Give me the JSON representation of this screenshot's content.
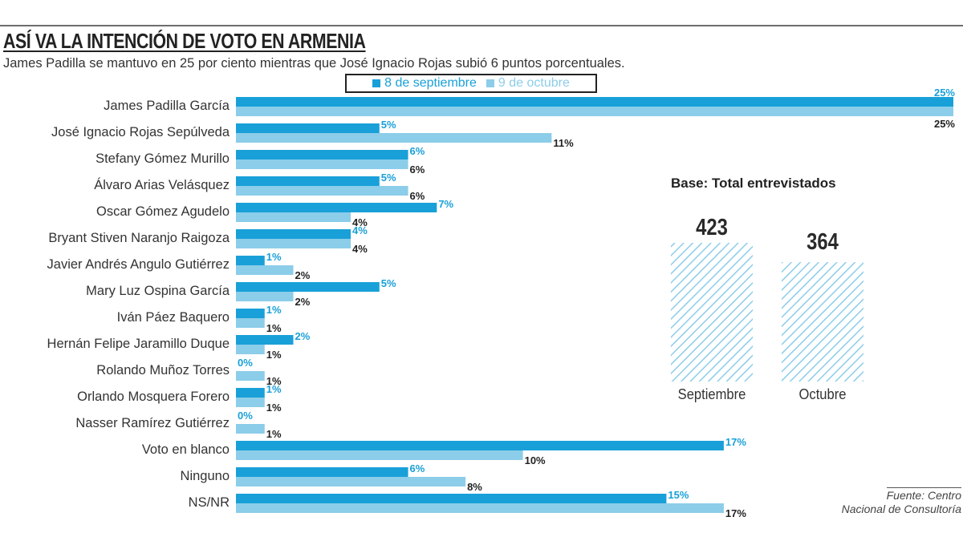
{
  "title": "ASÍ VA LA INTENCIÓN DE VOTO EN ARMENIA",
  "subtitle": "James Padilla se mantuvo en 25 por ciento mientras que José Ignacio Rojas subió 6 puntos porcentuales.",
  "legend": {
    "series1": "8 de septiembre",
    "series2": "9 de octubre"
  },
  "colors": {
    "series1": "#19a0d8",
    "series2": "#8ccde9",
    "hatch": "#8ccde9"
  },
  "chart_data": [
    {
      "type": "bar",
      "orientation": "horizontal",
      "title": "ASÍ VA LA INTENCIÓN DE VOTO EN ARMENIA",
      "unit": "%",
      "xlim": [
        0,
        25
      ],
      "categories": [
        "James Padilla García",
        "José Ignacio Rojas Sepúlveda",
        "Stefany Gómez Murillo",
        "Álvaro Arias Velásquez",
        "Oscar Gómez Agudelo",
        "Bryant Stiven Naranjo Raigoza",
        "Javier Andrés Angulo Gutiérrez",
        "Mary Luz Ospina García",
        "Iván Páez Baquero",
        "Hernán Felipe Jaramillo Duque",
        "Rolando Muñoz Torres",
        "Orlando Mosquera Forero",
        "Nasser Ramírez Gutiérrez",
        "Voto en blanco",
        "Ninguno",
        "NS/NR"
      ],
      "series": [
        {
          "name": "8 de septiembre",
          "values": [
            25,
            5,
            6,
            5,
            7,
            4,
            1,
            5,
            1,
            2,
            0,
            1,
            0,
            17,
            6,
            15
          ]
        },
        {
          "name": "9 de octubre",
          "values": [
            25,
            11,
            6,
            6,
            4,
            4,
            2,
            2,
            1,
            1,
            1,
            1,
            1,
            10,
            8,
            17
          ]
        }
      ],
      "data_labels": [
        [
          "25%",
          "5%",
          "6%",
          "5%",
          "7%",
          "4%",
          "1%",
          "5%",
          "1%",
          "2%",
          "0%",
          "1%",
          "0%",
          "17%",
          "6%",
          "15%"
        ],
        [
          "25%",
          "11%",
          "6%",
          "6%",
          "4%",
          "4%",
          "2%",
          "2%",
          "1%",
          "1%",
          "1%",
          "1%",
          "1%",
          "10%",
          "8%",
          "17%"
        ]
      ]
    },
    {
      "type": "bar",
      "title": "Base: Total entrevistados",
      "categories": [
        "Septiembre",
        "Octubre"
      ],
      "values": [
        423,
        364
      ],
      "value_labels": [
        "423",
        "364"
      ]
    }
  ],
  "base": {
    "title": "Base: Total entrevistados",
    "bars": [
      {
        "label": "Septiembre",
        "value": "423"
      },
      {
        "label": "Octubre",
        "value": "364"
      }
    ]
  },
  "source": {
    "line1": "Fuente: Centro",
    "line2": "Nacional de Consultoría"
  }
}
